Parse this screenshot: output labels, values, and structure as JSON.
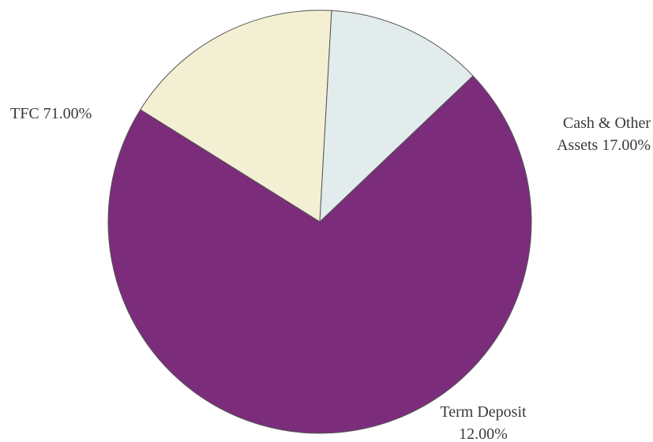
{
  "chart_data": {
    "type": "pie",
    "title": "",
    "start_angle_deg": 302,
    "direction": "clockwise",
    "slices": [
      {
        "name": "Cash & Other Assets",
        "value": 17.0,
        "label_lines": [
          "Cash & Other",
          "Assets 17.00%"
        ],
        "color": "#f3efd2"
      },
      {
        "name": "Term Deposit",
        "value": 12.0,
        "label_lines": [
          "Term Deposit",
          "12.00%"
        ],
        "color": "#e3ecec"
      },
      {
        "name": "TFC",
        "value": 71.0,
        "label_lines": [
          "TFC 71.00%"
        ],
        "color": "#7b2d7b"
      }
    ]
  }
}
